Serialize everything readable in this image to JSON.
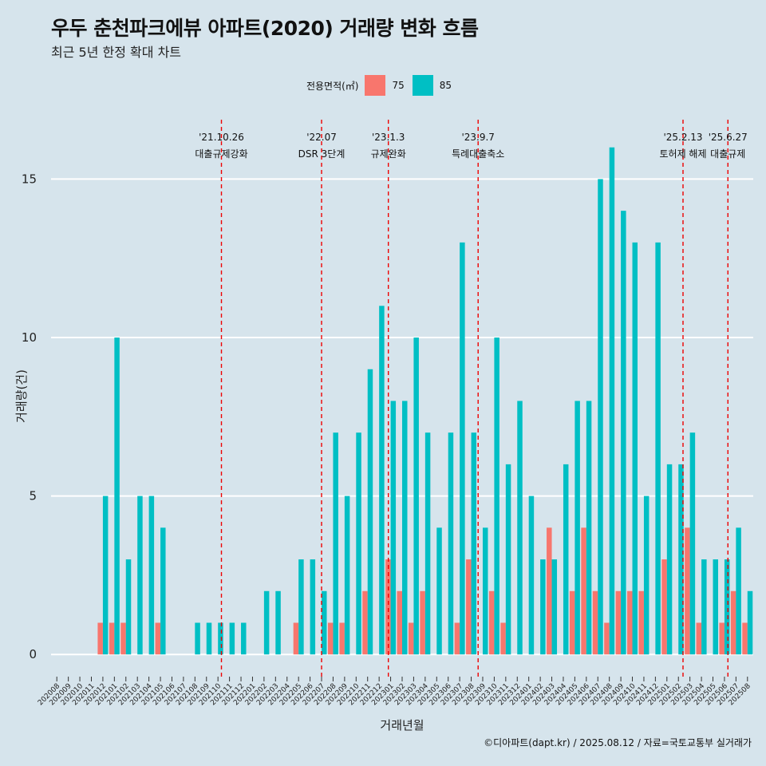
{
  "title": "우두 춘천파크에뷰 아파트(2020) 거래량 변화 흐름",
  "subtitle": "최근 5년 한정 확대 차트",
  "caption": "©디아파트(dapt.kr) / 2025.08.12 / 자료=국토교통부 실거래가",
  "legend": {
    "title": "전용면적(㎡)",
    "items": [
      {
        "label": "75",
        "color": "#f8766d"
      },
      {
        "label": "85",
        "color": "#00bfc4"
      }
    ]
  },
  "chart_data": {
    "type": "bar",
    "xlabel": "거래년월",
    "ylabel": "거래량(건)",
    "ylim": [
      -0.7,
      17
    ],
    "yticks": [
      0,
      5,
      10,
      15
    ],
    "categories": [
      "202008",
      "202009",
      "202010",
      "202011",
      "202012",
      "202101",
      "202102",
      "202103",
      "202104",
      "202105",
      "202106",
      "202107",
      "202108",
      "202109",
      "202110",
      "202111",
      "202112",
      "202201",
      "202202",
      "202203",
      "202204",
      "202205",
      "202206",
      "202207",
      "202208",
      "202209",
      "202210",
      "202211",
      "202212",
      "202301",
      "202302",
      "202303",
      "202304",
      "202305",
      "202306",
      "202307",
      "202308",
      "202309",
      "202310",
      "202311",
      "202312",
      "202401",
      "202402",
      "202403",
      "202404",
      "202405",
      "202406",
      "202407",
      "202408",
      "202409",
      "202410",
      "202411",
      "202412",
      "202501",
      "202502",
      "202503",
      "202504",
      "202505",
      "202506",
      "202507",
      "202508"
    ],
    "series": [
      {
        "name": "75",
        "color": "#f8766d",
        "values": [
          0,
          0,
          0,
          0,
          1,
          1,
          1,
          0,
          0,
          1,
          0,
          0,
          0,
          0,
          0,
          0,
          0,
          0,
          0,
          0,
          0,
          1,
          0,
          0,
          1,
          1,
          0,
          2,
          0,
          3,
          2,
          1,
          2,
          0,
          0,
          1,
          3,
          0,
          2,
          1,
          0,
          0,
          0,
          4,
          0,
          2,
          4,
          2,
          1,
          2,
          2,
          2,
          0,
          3,
          0,
          4,
          1,
          0,
          1,
          2,
          1
        ]
      },
      {
        "name": "85",
        "color": "#00bfc4",
        "values": [
          0,
          0,
          0,
          0,
          5,
          10,
          3,
          5,
          5,
          4,
          0,
          0,
          1,
          1,
          1,
          1,
          1,
          0,
          2,
          2,
          0,
          3,
          3,
          2,
          7,
          5,
          7,
          9,
          11,
          8,
          8,
          10,
          7,
          4,
          7,
          13,
          7,
          4,
          10,
          6,
          8,
          5,
          3,
          3,
          6,
          8,
          8,
          15,
          16,
          14,
          13,
          5,
          13,
          6,
          6,
          7,
          3,
          3,
          3,
          4,
          2
        ]
      }
    ],
    "annotations": [
      {
        "date": "'21.10.26",
        "label": "대출규제강화",
        "x": 14.3
      },
      {
        "date": "'22.07",
        "label": "DSR 3단계",
        "x": 23.0
      },
      {
        "date": "'23.1.3",
        "label": "규제완화",
        "x": 28.8
      },
      {
        "date": "'23.9.7",
        "label": "특례대출축소",
        "x": 36.6
      },
      {
        "date": "'25.2.13",
        "label": "토허제 해제",
        "x": 54.4
      },
      {
        "date": "'25.6.27",
        "label": "대출규제",
        "x": 58.3
      }
    ]
  }
}
